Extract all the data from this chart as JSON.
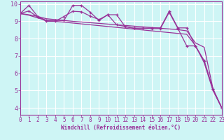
{
  "xlabel": "Windchill (Refroidissement éolien,°C)",
  "background_color": "#cef5f5",
  "grid_color": "#ffffff",
  "line_color": "#993399",
  "xlim_min": 0,
  "xlim_max": 23,
  "ylim_min": 3.6,
  "ylim_max": 10.15,
  "yticks": [
    4,
    5,
    6,
    7,
    8,
    9,
    10
  ],
  "xticks": [
    0,
    1,
    2,
    3,
    4,
    5,
    6,
    7,
    8,
    9,
    10,
    11,
    12,
    13,
    14,
    15,
    16,
    17,
    18,
    19,
    20,
    21,
    22,
    23
  ],
  "line1_x": [
    0,
    1,
    2,
    3,
    4,
    5,
    6,
    7,
    8,
    9,
    10,
    11,
    12,
    13,
    14,
    15,
    16,
    17,
    18,
    19,
    20,
    21,
    22,
    23
  ],
  "line1_y": [
    9.45,
    9.35,
    9.2,
    9.05,
    9.0,
    8.95,
    8.9,
    8.85,
    8.8,
    8.75,
    8.7,
    8.65,
    8.6,
    8.55,
    8.5,
    8.45,
    8.4,
    8.35,
    8.3,
    8.25,
    7.6,
    6.6,
    5.0,
    4.0
  ],
  "line2_x": [
    0,
    1,
    2,
    3,
    4,
    5,
    6,
    7,
    8,
    9,
    10,
    11,
    12,
    13,
    14,
    15,
    16,
    17,
    18,
    19,
    20,
    21,
    22,
    23
  ],
  "line2_y": [
    9.45,
    9.38,
    9.28,
    9.15,
    9.1,
    9.05,
    9.0,
    8.96,
    8.92,
    8.88,
    8.84,
    8.8,
    8.76,
    8.72,
    8.68,
    8.64,
    8.6,
    8.56,
    8.52,
    8.45,
    7.75,
    7.5,
    5.1,
    4.0
  ],
  "line3_x": [
    0,
    1,
    2,
    3,
    4,
    5,
    6,
    7,
    8,
    9,
    10,
    11,
    12,
    13,
    14,
    15,
    16,
    17,
    18,
    19,
    20,
    21,
    22,
    23
  ],
  "line3_y": [
    9.45,
    9.6,
    9.25,
    9.0,
    9.0,
    9.28,
    9.58,
    9.55,
    9.3,
    9.1,
    9.38,
    8.8,
    8.7,
    8.6,
    8.6,
    8.62,
    8.62,
    9.58,
    8.62,
    8.62,
    7.55,
    6.7,
    5.05,
    4.0
  ],
  "line4_x": [
    0,
    1,
    2,
    3,
    4,
    5,
    6,
    7,
    8,
    9,
    10,
    11,
    12,
    13,
    14,
    15,
    16,
    17,
    18,
    19,
    20,
    21,
    22,
    23
  ],
  "line4_y": [
    9.45,
    9.92,
    9.28,
    9.05,
    9.05,
    9.05,
    9.92,
    9.92,
    9.52,
    9.05,
    9.38,
    9.38,
    8.68,
    8.6,
    8.6,
    8.58,
    8.58,
    9.52,
    8.58,
    7.58,
    7.58,
    6.72,
    5.08,
    4.0
  ],
  "tick_fontsize": 5.5,
  "xlabel_fontsize": 5.5
}
